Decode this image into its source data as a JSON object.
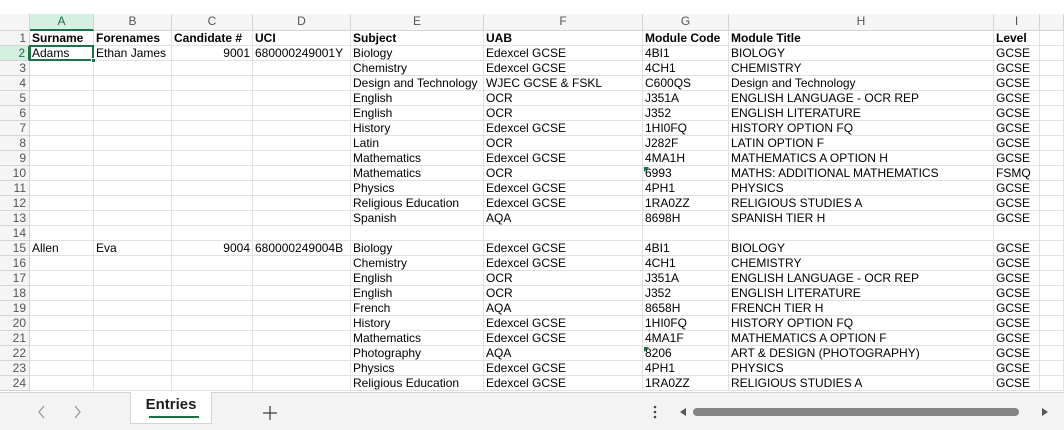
{
  "column_letters": [
    "A",
    "B",
    "C",
    "D",
    "E",
    "F",
    "G",
    "H",
    "I"
  ],
  "row_numbers": [
    1,
    2,
    3,
    4,
    5,
    6,
    7,
    8,
    9,
    10,
    11,
    12,
    13,
    14,
    15,
    16,
    17,
    18,
    19,
    20,
    21,
    22,
    23,
    24
  ],
  "table": {
    "rows": [
      [
        "Surname",
        "Forenames",
        "Candidate #",
        "UCI",
        "Subject",
        "UAB",
        "Module Code",
        "Module Title",
        "Level"
      ],
      [
        "Adams",
        "Ethan James",
        9001,
        "680000249001Y",
        "Biology",
        "Edexcel GCSE",
        "4BI1",
        "BIOLOGY",
        "GCSE"
      ],
      [
        null,
        null,
        null,
        null,
        "Chemistry",
        "Edexcel GCSE",
        "4CH1",
        "CHEMISTRY",
        "GCSE"
      ],
      [
        null,
        null,
        null,
        null,
        "Design and Technology",
        "WJEC GCSE & FSKL",
        "C600QS",
        "Design and Technology",
        "GCSE"
      ],
      [
        null,
        null,
        null,
        null,
        "English",
        "OCR",
        "J351A",
        "ENGLISH LANGUAGE - OCR REP",
        "GCSE"
      ],
      [
        null,
        null,
        null,
        null,
        "English",
        "OCR",
        "J352",
        "ENGLISH LITERATURE",
        "GCSE"
      ],
      [
        null,
        null,
        null,
        null,
        "History",
        "Edexcel GCSE",
        "1HI0FQ",
        "HISTORY OPTION FQ",
        "GCSE"
      ],
      [
        null,
        null,
        null,
        null,
        "Latin",
        "OCR",
        "J282F",
        "LATIN OPTION F",
        "GCSE"
      ],
      [
        null,
        null,
        null,
        null,
        "Mathematics",
        "Edexcel GCSE",
        "4MA1H",
        "MATHEMATICS A OPTION H",
        "GCSE"
      ],
      [
        null,
        null,
        null,
        null,
        "Mathematics",
        "OCR",
        "6993",
        "MATHS: ADDITIONAL MATHEMATICS",
        "FSMQ"
      ],
      [
        null,
        null,
        null,
        null,
        "Physics",
        "Edexcel GCSE",
        "4PH1",
        "PHYSICS",
        "GCSE"
      ],
      [
        null,
        null,
        null,
        null,
        "Religious Education",
        "Edexcel GCSE",
        "1RA0ZZ",
        "RELIGIOUS STUDIES A",
        "GCSE"
      ],
      [
        null,
        null,
        null,
        null,
        "Spanish",
        "AQA",
        "8698H",
        "SPANISH TIER H",
        "GCSE"
      ],
      [
        null,
        null,
        null,
        null,
        null,
        null,
        null,
        null,
        null
      ],
      [
        "Allen",
        "Eva",
        9004,
        "680000249004B",
        "Biology",
        "Edexcel GCSE",
        "4BI1",
        "BIOLOGY",
        "GCSE"
      ],
      [
        null,
        null,
        null,
        null,
        "Chemistry",
        "Edexcel GCSE",
        "4CH1",
        "CHEMISTRY",
        "GCSE"
      ],
      [
        null,
        null,
        null,
        null,
        "English",
        "OCR",
        "J351A",
        "ENGLISH LANGUAGE - OCR REP",
        "GCSE"
      ],
      [
        null,
        null,
        null,
        null,
        "English",
        "OCR",
        "J352",
        "ENGLISH LITERATURE",
        "GCSE"
      ],
      [
        null,
        null,
        null,
        null,
        "French",
        "AQA",
        "8658H",
        "FRENCH TIER H",
        "GCSE"
      ],
      [
        null,
        null,
        null,
        null,
        "History",
        "Edexcel GCSE",
        "1HI0FQ",
        "HISTORY OPTION FQ",
        "GCSE"
      ],
      [
        null,
        null,
        null,
        null,
        "Mathematics",
        "Edexcel GCSE",
        "4MA1F",
        "MATHEMATICS A OPTION F",
        "GCSE"
      ],
      [
        null,
        null,
        null,
        null,
        "Photography",
        "AQA",
        "8206",
        "ART & DESIGN (PHOTOGRAPHY)",
        "GCSE"
      ],
      [
        null,
        null,
        null,
        null,
        "Physics",
        "Edexcel GCSE",
        "4PH1",
        "PHYSICS",
        "GCSE"
      ],
      [
        null,
        null,
        null,
        null,
        "Religious Education",
        "Edexcel GCSE",
        "1RA0ZZ",
        "RELIGIOUS STUDIES A",
        "GCSE"
      ]
    ]
  },
  "sheet_tabs": [
    "Entries"
  ]
}
